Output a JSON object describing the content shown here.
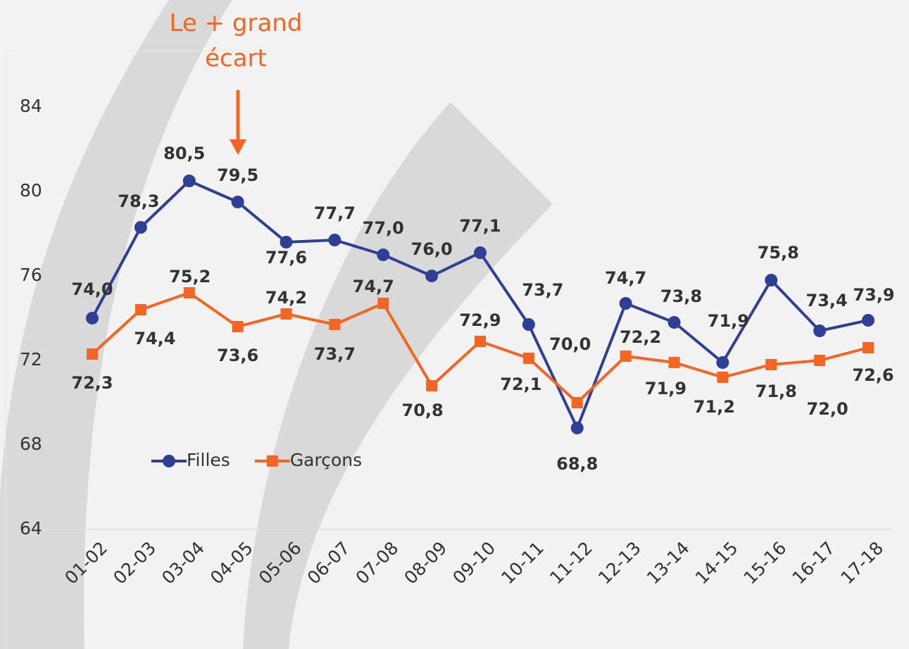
{
  "chart_data": {
    "type": "line",
    "annotation": "Le + grand écart",
    "categories": [
      "01-02",
      "02-03",
      "03-04",
      "04-05",
      "05-06",
      "06-07",
      "07-08",
      "08-09",
      "09-10",
      "10-11",
      "11-12",
      "12-13",
      "13-14",
      "14-15",
      "15-16",
      "16-17",
      "17-18"
    ],
    "series": [
      {
        "name": "Filles",
        "color": "#2e3f94",
        "marker": "circle",
        "values": [
          74.0,
          78.3,
          80.5,
          79.5,
          77.6,
          77.7,
          77.0,
          76.0,
          77.1,
          73.7,
          68.8,
          74.7,
          73.8,
          71.9,
          75.8,
          73.4,
          73.9
        ],
        "value_labels": [
          "74,0",
          "78,3",
          "80,5",
          "79,5",
          "77,6",
          "77,7",
          "77,0",
          "76,0",
          "77,1",
          "73,7",
          "68,8",
          "74,7",
          "73,8",
          "71,9",
          "75,8",
          "73,4",
          "73,9"
        ]
      },
      {
        "name": "Garçons",
        "color": "#f26522",
        "marker": "square",
        "values": [
          72.3,
          74.4,
          75.2,
          73.6,
          74.2,
          73.7,
          74.7,
          70.8,
          72.9,
          72.1,
          70.0,
          72.2,
          71.9,
          71.2,
          71.8,
          72.0,
          72.6
        ],
        "value_labels": [
          "72,3",
          "74,4",
          "75,2",
          "73,6",
          "74,2",
          "73,7",
          "74,7",
          "70,8",
          "72,9",
          "72,1",
          "70,0",
          "72,2",
          "71,9",
          "71,2",
          "71,8",
          "72,0",
          "72,6"
        ]
      }
    ],
    "ylim": [
      64,
      84
    ],
    "yticks": [
      64,
      68,
      72,
      76,
      80,
      84
    ],
    "grid": false,
    "legend": "left"
  }
}
